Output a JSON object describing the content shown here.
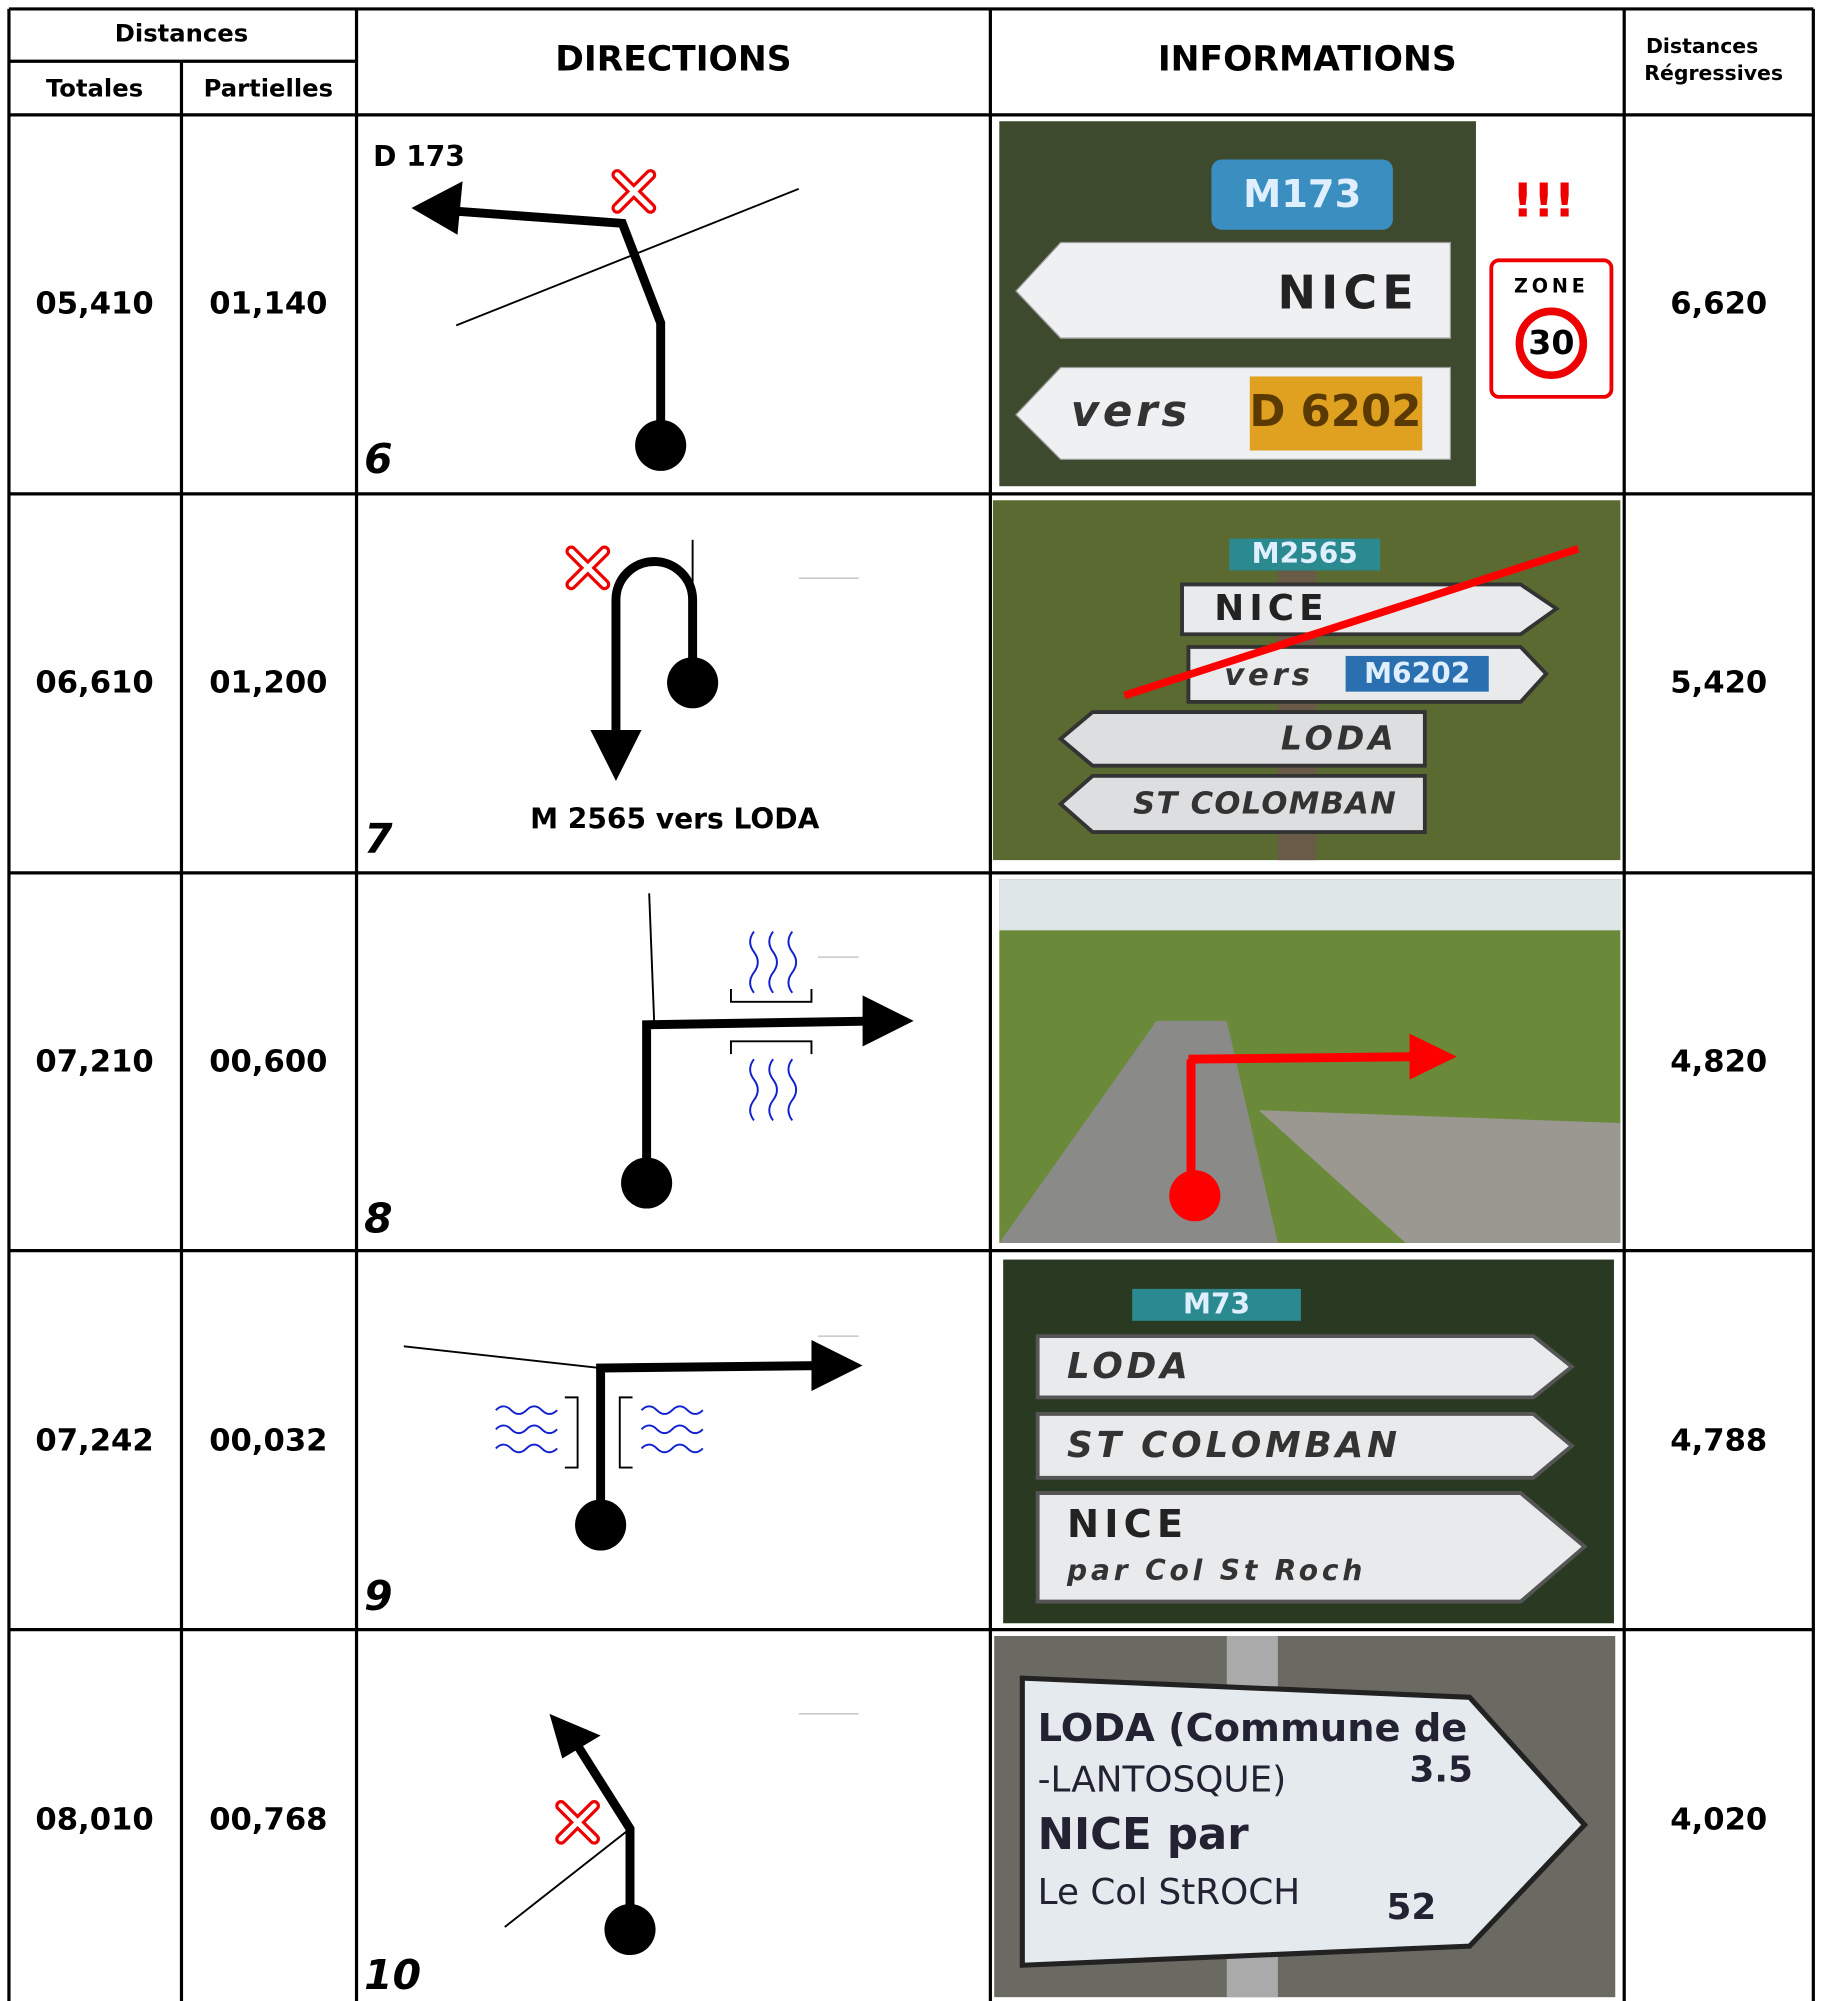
{
  "header": {
    "distances": "Distances",
    "totales": "Totales",
    "partielles": "Partielles",
    "directions": "DIRECTIONS",
    "informations": "INFORMATIONS",
    "regressives_line1": "Distances",
    "regressives_line2": "Régressives"
  },
  "rows": [
    {
      "totale": "05,410",
      "partielle": "01,140",
      "step": "6",
      "road": "D 173",
      "signs": [
        "M173",
        "NICE",
        "vers",
        "D 6202"
      ],
      "warning": "!!!",
      "zone": "ZONE",
      "speed": "30",
      "regressive": "6,620"
    },
    {
      "totale": "06,610",
      "partielle": "01,200",
      "step": "7",
      "road": "M 2565 vers LODA",
      "signs": [
        "M2565",
        "NICE",
        "vers",
        "M6202",
        "LODA",
        "ST COLOMBAN"
      ],
      "regressive": "5,420"
    },
    {
      "totale": "07,210",
      "partielle": "00,600",
      "step": "8",
      "regressive": "4,820"
    },
    {
      "totale": "07,242",
      "partielle": "00,032",
      "step": "9",
      "signs": [
        "M73",
        "LODA",
        "ST COLOMBAN",
        "NICE",
        "par Col St Roch"
      ],
      "regressive": "4,788"
    },
    {
      "totale": "08,010",
      "partielle": "00,768",
      "step": "10",
      "signs": [
        "LODA (Commune de",
        "-LANTOSQUE)",
        "3.5",
        "NICE par",
        "Le Col StROCH",
        "52"
      ],
      "regressive": "4,020"
    }
  ]
}
